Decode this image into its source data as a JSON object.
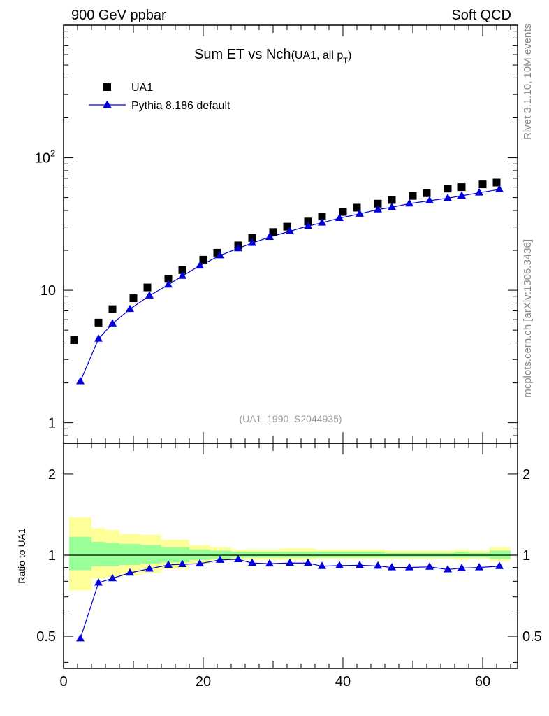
{
  "header": {
    "left": "900 GeV ppbar",
    "right": "Soft QCD"
  },
  "side_labels": {
    "rivet": "Rivet 3.1.10,  10M events",
    "mcplots": "mcplots.cern.ch [arXiv:1306.3436]"
  },
  "watermark": "(UA1_1990_S2044935)",
  "colors": {
    "data": "#000000",
    "mc": "#0000dd",
    "band_inner": "#99ff99",
    "band_outer": "#ffff99"
  },
  "chart_data": [
    {
      "type": "scatter",
      "panel": "main",
      "title_main": "Sum ET vs Nch",
      "title_sub": "(UA1, all p",
      "title_sub_index": "T",
      "title_sub_close": ")",
      "yscale": "log",
      "xlim": [
        0,
        65
      ],
      "ylim": [
        0.7,
        1000
      ],
      "ytick_labels": [
        {
          "value": 1,
          "label": "1"
        },
        {
          "value": 10,
          "label": "10"
        },
        {
          "value": 100,
          "label": "10",
          "sup": "2"
        }
      ],
      "legend_position": "top-left",
      "series": [
        {
          "name": "UA1",
          "marker": "square",
          "x": [
            1.5,
            5,
            7,
            10,
            12,
            15,
            17,
            20,
            22,
            25,
            27,
            30,
            32,
            35,
            37,
            40,
            42,
            45,
            47,
            50,
            52,
            55,
            57,
            60,
            62
          ],
          "values": [
            4.2,
            5.7,
            7.2,
            8.7,
            10.5,
            12.2,
            14.2,
            17.0,
            19.2,
            21.8,
            24.8,
            27.5,
            30.2,
            33.0,
            36.0,
            39.0,
            42.0,
            45.0,
            48.0,
            51.5,
            54.0,
            58.5,
            60.0,
            63.0,
            65.0
          ]
        },
        {
          "name": "Pythia 8.186 default",
          "marker": "triangle",
          "x": [
            2.4,
            5,
            7,
            9.5,
            12.3,
            15,
            17,
            19.5,
            22.4,
            25,
            27,
            29.5,
            32.4,
            35,
            37,
            39.5,
            42.4,
            45,
            47,
            49.5,
            52.4,
            55,
            57,
            59.5,
            62.4
          ],
          "values": [
            2.05,
            4.3,
            5.6,
            7.2,
            9.1,
            11.0,
            12.8,
            15.3,
            18.3,
            20.7,
            22.7,
            25.2,
            27.9,
            30.5,
            32.3,
            35.0,
            37.7,
            40.6,
            42.3,
            45.0,
            47.4,
            49.5,
            51.6,
            54.4,
            57.7
          ]
        }
      ]
    },
    {
      "type": "scatter",
      "panel": "ratio",
      "ylabel": "Ratio to UA1",
      "yscale": "log",
      "xlim": [
        0,
        65
      ],
      "ylim": [
        0.38,
        2.6
      ],
      "xtick_labels": [
        {
          "value": 0,
          "label": "0"
        },
        {
          "value": 20,
          "label": "20"
        },
        {
          "value": 40,
          "label": "40"
        },
        {
          "value": 60,
          "label": "60"
        }
      ],
      "ytick_labels": [
        {
          "value": 0.5,
          "label": "0.5"
        },
        {
          "value": 1,
          "label": "1"
        },
        {
          "value": 2,
          "label": "2"
        }
      ],
      "band_bins": [
        {
          "x0": 0.8,
          "x1": 4,
          "inner": [
            0.88,
            1.17
          ],
          "outer": [
            0.74,
            1.38
          ]
        },
        {
          "x0": 4,
          "x1": 6,
          "inner": [
            0.91,
            1.12
          ],
          "outer": [
            0.82,
            1.26
          ]
        },
        {
          "x0": 6,
          "x1": 8,
          "inner": [
            0.91,
            1.11
          ],
          "outer": [
            0.83,
            1.24
          ]
        },
        {
          "x0": 8,
          "x1": 11,
          "inner": [
            0.92,
            1.1
          ],
          "outer": [
            0.84,
            1.2
          ]
        },
        {
          "x0": 11,
          "x1": 14,
          "inner": [
            0.93,
            1.09
          ],
          "outer": [
            0.86,
            1.19
          ]
        },
        {
          "x0": 14,
          "x1": 18,
          "inner": [
            0.94,
            1.07
          ],
          "outer": [
            0.89,
            1.14
          ]
        },
        {
          "x0": 18,
          "x1": 21,
          "inner": [
            0.96,
            1.05
          ],
          "outer": [
            0.93,
            1.09
          ]
        },
        {
          "x0": 21,
          "x1": 24,
          "inner": [
            0.97,
            1.04
          ],
          "outer": [
            0.95,
            1.07
          ]
        },
        {
          "x0": 24,
          "x1": 31,
          "inner": [
            0.98,
            1.03
          ],
          "outer": [
            0.96,
            1.05
          ]
        },
        {
          "x0": 31,
          "x1": 36,
          "inner": [
            0.98,
            1.03
          ],
          "outer": [
            0.96,
            1.06
          ]
        },
        {
          "x0": 36,
          "x1": 46,
          "inner": [
            0.98,
            1.03
          ],
          "outer": [
            0.97,
            1.05
          ]
        },
        {
          "x0": 46,
          "x1": 56,
          "inner": [
            0.98,
            1.02
          ],
          "outer": [
            0.97,
            1.04
          ]
        },
        {
          "x0": 56,
          "x1": 58,
          "inner": [
            0.98,
            1.03
          ],
          "outer": [
            0.96,
            1.05
          ]
        },
        {
          "x0": 58,
          "x1": 61,
          "inner": [
            0.98,
            1.02
          ],
          "outer": [
            0.97,
            1.04
          ]
        },
        {
          "x0": 61,
          "x1": 64,
          "inner": [
            0.97,
            1.04
          ],
          "outer": [
            0.95,
            1.07
          ]
        }
      ],
      "reference_line": 1,
      "series": [
        {
          "name": "Pythia 8.186 default",
          "marker": "triangle",
          "x": [
            2.4,
            5,
            7,
            9.5,
            12.3,
            15,
            17,
            19.5,
            22.4,
            25,
            27,
            29.5,
            32.4,
            35,
            37,
            39.5,
            42.4,
            45,
            47,
            49.5,
            52.4,
            55,
            57,
            59.5,
            62.4
          ],
          "values": [
            0.49,
            0.79,
            0.82,
            0.86,
            0.89,
            0.92,
            0.925,
            0.93,
            0.96,
            0.965,
            0.935,
            0.93,
            0.935,
            0.935,
            0.91,
            0.915,
            0.918,
            0.912,
            0.9,
            0.9,
            0.905,
            0.885,
            0.895,
            0.9,
            0.91
          ]
        }
      ]
    }
  ]
}
